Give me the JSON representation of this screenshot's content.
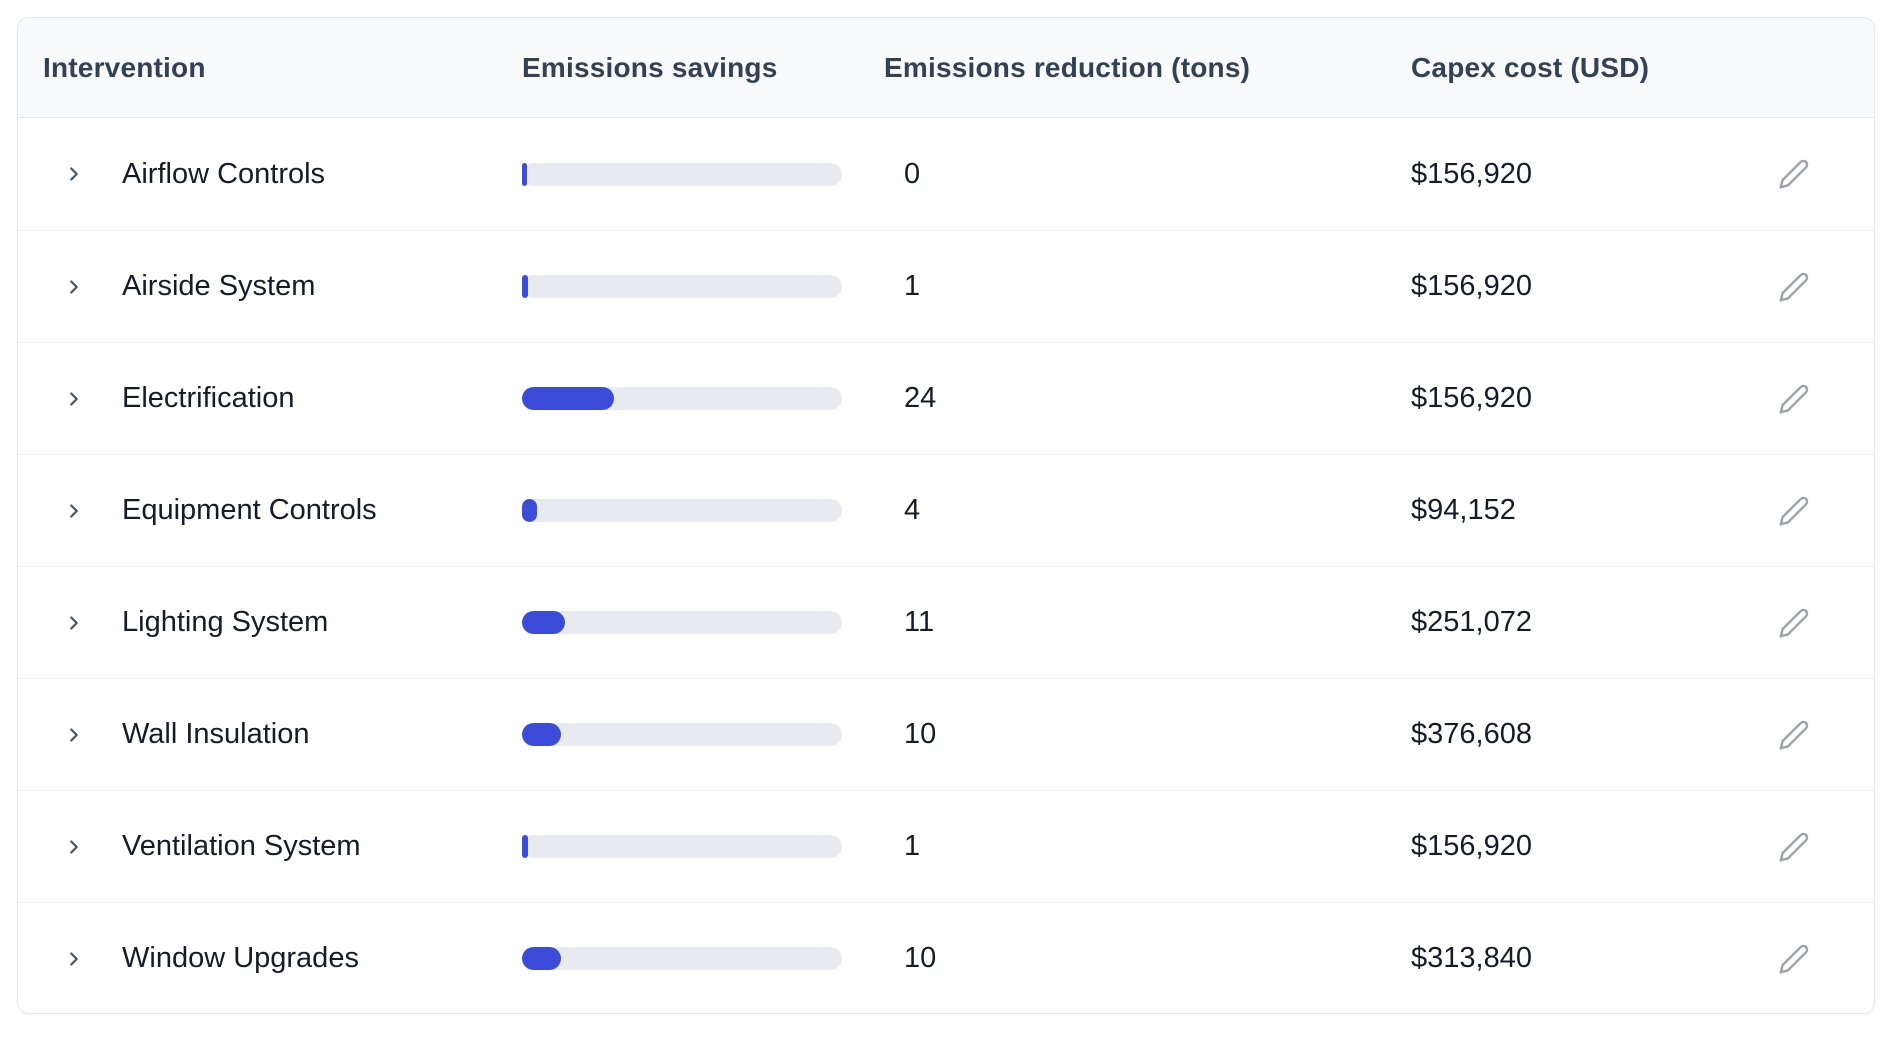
{
  "table": {
    "columns": [
      {
        "label": "Intervention"
      },
      {
        "label": "Emissions savings"
      },
      {
        "label": "Emissions reduction (tons)"
      },
      {
        "label": "Capex cost (USD)"
      }
    ],
    "rows": [
      {
        "name": "Airflow Controls",
        "reduction_tons": "0",
        "capex": "$156,920",
        "bar_percent": 1.5
      },
      {
        "name": "Airside System",
        "reduction_tons": "1",
        "capex": "$156,920",
        "bar_percent": 1.9
      },
      {
        "name": "Electrification",
        "reduction_tons": "24",
        "capex": "$156,920",
        "bar_percent": 28.7
      },
      {
        "name": "Equipment Controls",
        "reduction_tons": "4",
        "capex": "$94,152",
        "bar_percent": 4.7
      },
      {
        "name": "Lighting System",
        "reduction_tons": "11",
        "capex": "$251,072",
        "bar_percent": 13.4
      },
      {
        "name": "Wall Insulation",
        "reduction_tons": "10",
        "capex": "$376,608",
        "bar_percent": 12.2
      },
      {
        "name": "Ventilation System",
        "reduction_tons": "1",
        "capex": "$156,920",
        "bar_percent": 1.9
      },
      {
        "name": "Window Upgrades",
        "reduction_tons": "10",
        "capex": "$313,840",
        "bar_percent": 12.2
      }
    ]
  },
  "icons": {
    "row_expander": "chevron-right",
    "row_edit": "pencil"
  },
  "colors": {
    "bar_fill": "#3b4cd9",
    "bar_track": "#e9eaef",
    "header_bg": "#f8fafc",
    "header_text": "#334155",
    "body_text": "#151c28",
    "card_border": "#e6e8ee",
    "row_divider": "#edeff3",
    "muted_icon": "#9ca3af",
    "chevron_icon": "#475569"
  }
}
